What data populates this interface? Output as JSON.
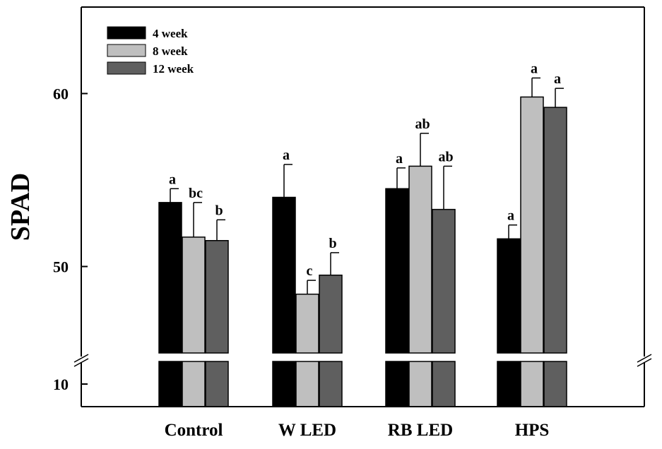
{
  "chart_data": {
    "type": "bar",
    "ylabel": "SPAD",
    "xlabel": "",
    "categories": [
      "Control",
      "W LED",
      "RB LED",
      "HPS"
    ],
    "series": [
      {
        "name": "4 week",
        "color": "#000000",
        "values": [
          53.7,
          54.0,
          54.5,
          51.6
        ],
        "errors": [
          0.8,
          1.9,
          1.2,
          0.8
        ],
        "letters": [
          "a",
          "a",
          "a",
          "a"
        ]
      },
      {
        "name": "8 week",
        "color": "#bfbfbf",
        "values": [
          51.7,
          48.4,
          55.8,
          59.8
        ],
        "errors": [
          2.0,
          0.8,
          1.9,
          1.1
        ],
        "letters": [
          "bc",
          "c",
          "ab",
          "a"
        ]
      },
      {
        "name": "12 week",
        "color": "#5f5f5f",
        "values": [
          51.5,
          49.5,
          53.3,
          59.2
        ],
        "errors": [
          1.2,
          1.3,
          2.5,
          1.1
        ],
        "letters": [
          "b",
          "b",
          "ab",
          "a"
        ]
      }
    ],
    "yticks": [
      10,
      50,
      60
    ],
    "ytick_labels": [
      "10",
      "50",
      "60"
    ],
    "ylim_upper": [
      45,
      65
    ],
    "ylim_lower": [
      5,
      15
    ],
    "axis_break": true,
    "legend_position": "top-left"
  }
}
